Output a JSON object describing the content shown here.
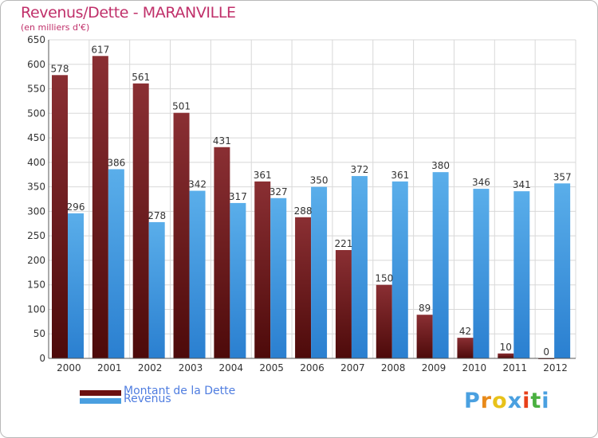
{
  "header": {
    "title": "Revenus/Dette - MARANVILLE",
    "subtitle": "(en milliers d'€)"
  },
  "colors": {
    "title": "#c0306a",
    "dette": "#7a1a1f",
    "revenus": "#4a9fe0",
    "legend_text": "#4f7de0"
  },
  "legend": {
    "items": [
      {
        "label": "Montant de la Dette",
        "color": "#6b1010"
      },
      {
        "label": "Revenus",
        "color": "#4a9fe0"
      }
    ]
  },
  "logo": {
    "letters": [
      "P",
      "r",
      "o",
      "x",
      "i",
      "t",
      "i"
    ],
    "colors": [
      "#4aa0e0",
      "#e88a1a",
      "#e8c21a",
      "#4aa0e0",
      "#e8401a",
      "#4ab040",
      "#4aa0e0"
    ]
  },
  "chart_data": {
    "type": "bar",
    "title": "Revenus/Dette - MARANVILLE",
    "ylabel": "(en milliers d'€)",
    "categories": [
      "2000",
      "2001",
      "2002",
      "2003",
      "2004",
      "2005",
      "2006",
      "2007",
      "2008",
      "2009",
      "2010",
      "2011",
      "2012"
    ],
    "series": [
      {
        "name": "Montant de la Dette",
        "values": [
          578,
          617,
          561,
          501,
          431,
          361,
          288,
          221,
          150,
          89,
          42,
          10,
          0
        ]
      },
      {
        "name": "Revenus",
        "values": [
          296,
          386,
          278,
          342,
          317,
          327,
          350,
          372,
          361,
          380,
          346,
          341,
          357
        ]
      }
    ],
    "ylim": [
      0,
      650
    ],
    "yticks": [
      0,
      50,
      100,
      150,
      200,
      250,
      300,
      350,
      400,
      450,
      500,
      550,
      600,
      650
    ],
    "grid": true,
    "legend_position": "bottom-left"
  }
}
